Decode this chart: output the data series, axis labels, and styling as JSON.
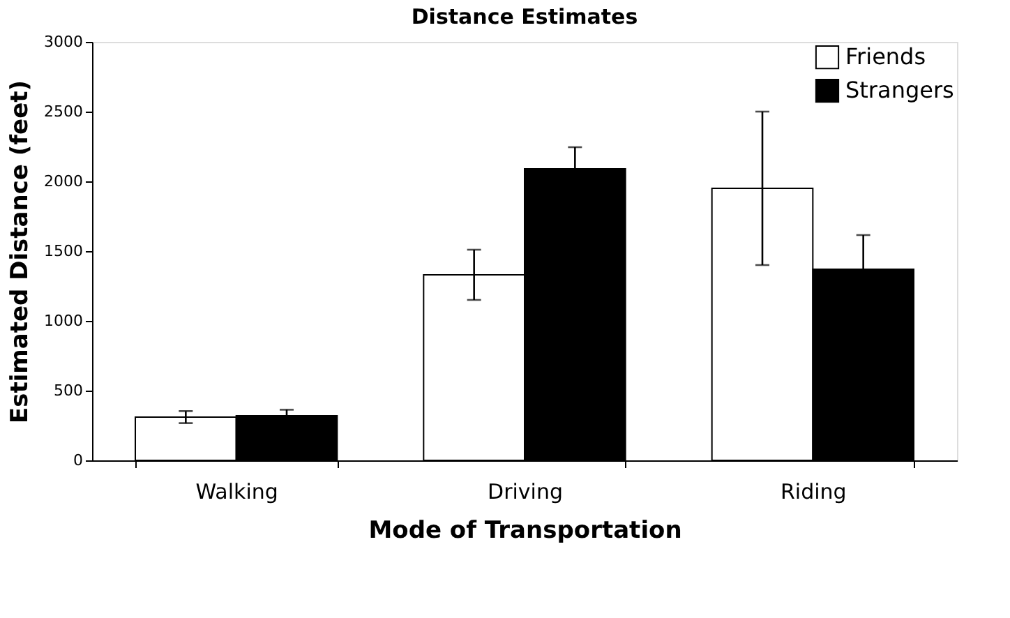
{
  "chart_data": {
    "type": "bar",
    "title": "Distance Estimates",
    "xlabel": "Mode of Transportation",
    "ylabel": "Estimated Distance (feet)",
    "categories": [
      "Walking",
      "Driving",
      "Riding"
    ],
    "series": [
      {
        "name": "Friends",
        "color": "#ffffff",
        "values": [
          310,
          1330,
          1950
        ],
        "errors": [
          43,
          180,
          550
        ]
      },
      {
        "name": "Strangers",
        "color": "#000000",
        "values": [
          320,
          2090,
          1370
        ],
        "errors": [
          43,
          155,
          245
        ]
      }
    ],
    "ylim": [
      0,
      3000
    ],
    "yticks": [
      0,
      500,
      1000,
      1500,
      2000,
      2500,
      3000
    ],
    "grid": false,
    "legend": "top right"
  }
}
